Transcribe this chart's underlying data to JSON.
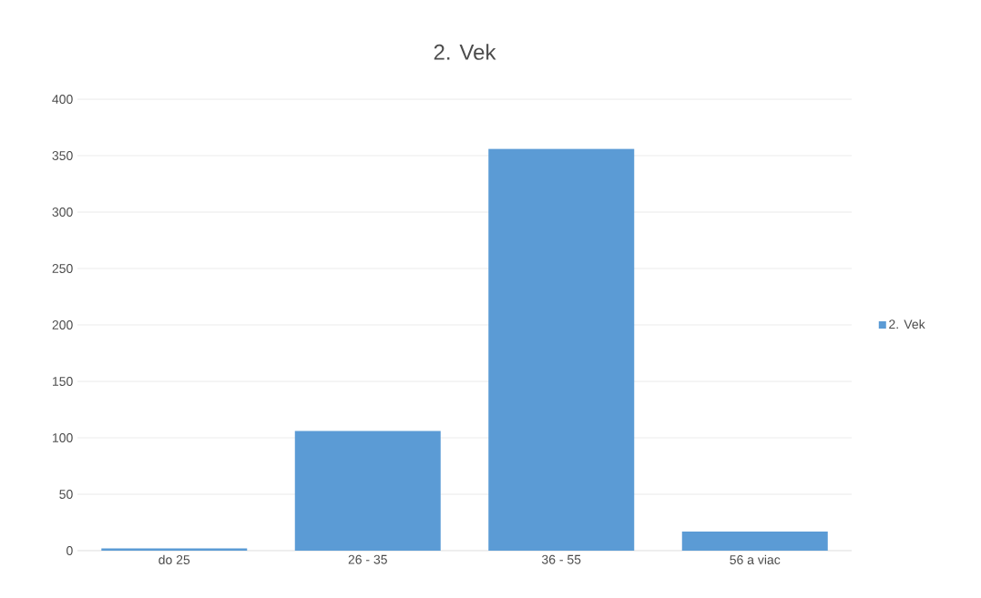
{
  "chart_data": {
    "type": "bar",
    "title": "2. Vek",
    "categories": [
      "do 25",
      "26 - 35",
      "36 - 55",
      "56 a viac"
    ],
    "series": [
      {
        "name": "2. Vek",
        "color": "#5b9bd5",
        "values": [
          2,
          106,
          356,
          17
        ]
      }
    ],
    "ylim": [
      0,
      400
    ],
    "yticks": [
      0,
      50,
      100,
      150,
      200,
      250,
      300,
      350,
      400
    ],
    "grid": "y",
    "legend": "right"
  }
}
